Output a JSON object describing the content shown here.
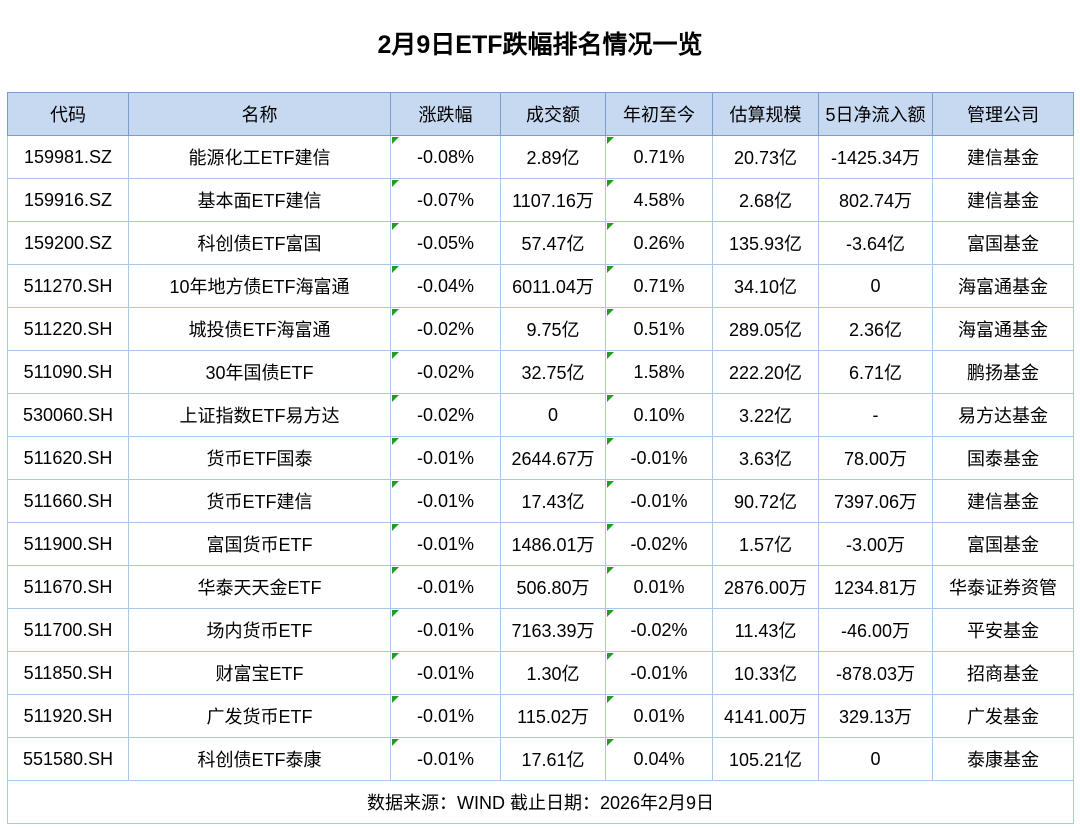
{
  "title": "2月9日ETF跌幅排名情况一览",
  "chart_data": {
    "type": "table",
    "title": "2月9日ETF跌幅排名情况一览",
    "columns": [
      "代码",
      "名称",
      "涨跌幅",
      "成交额",
      "年初至今",
      "估算规模",
      "5日净流入额",
      "管理公司"
    ],
    "rows": [
      [
        "159981.SZ",
        "能源化工ETF建信",
        "-0.08%",
        "2.89亿",
        "0.71%",
        "20.73亿",
        "-1425.34万",
        "建信基金"
      ],
      [
        "159916.SZ",
        "基本面ETF建信",
        "-0.07%",
        "1107.16万",
        "4.58%",
        "2.68亿",
        "802.74万",
        "建信基金"
      ],
      [
        "159200.SZ",
        "科创债ETF富国",
        "-0.05%",
        "57.47亿",
        "0.26%",
        "135.93亿",
        "-3.64亿",
        "富国基金"
      ],
      [
        "511270.SH",
        "10年地方债ETF海富通",
        "-0.04%",
        "6011.04万",
        "0.71%",
        "34.10亿",
        "0",
        "海富通基金"
      ],
      [
        "511220.SH",
        "城投债ETF海富通",
        "-0.02%",
        "9.75亿",
        "0.51%",
        "289.05亿",
        "2.36亿",
        "海富通基金"
      ],
      [
        "511090.SH",
        "30年国债ETF",
        "-0.02%",
        "32.75亿",
        "1.58%",
        "222.20亿",
        "6.71亿",
        "鹏扬基金"
      ],
      [
        "530060.SH",
        "上证指数ETF易方达",
        "-0.02%",
        "0",
        "0.10%",
        "3.22亿",
        "-",
        "易方达基金"
      ],
      [
        "511620.SH",
        "货币ETF国泰",
        "-0.01%",
        "2644.67万",
        "-0.01%",
        "3.63亿",
        "78.00万",
        "国泰基金"
      ],
      [
        "511660.SH",
        "货币ETF建信",
        "-0.01%",
        "17.43亿",
        "-0.01%",
        "90.72亿",
        "7397.06万",
        "建信基金"
      ],
      [
        "511900.SH",
        "富国货币ETF",
        "-0.01%",
        "1486.01万",
        "-0.02%",
        "1.57亿",
        "-3.00万",
        "富国基金"
      ],
      [
        "511670.SH",
        "华泰天天金ETF",
        "-0.01%",
        "506.80万",
        "0.01%",
        "2876.00万",
        "1234.81万",
        "华泰证券资管"
      ],
      [
        "511700.SH",
        "场内货币ETF",
        "-0.01%",
        "7163.39万",
        "-0.02%",
        "11.43亿",
        "-46.00万",
        "平安基金"
      ],
      [
        "511850.SH",
        "财富宝ETF",
        "-0.01%",
        "1.30亿",
        "-0.01%",
        "10.33亿",
        "-878.03万",
        "招商基金"
      ],
      [
        "511920.SH",
        "广发货币ETF",
        "-0.01%",
        "115.02万",
        "0.01%",
        "4141.00万",
        "329.13万",
        "广发基金"
      ],
      [
        "551580.SH",
        "科创债ETF泰康",
        "-0.01%",
        "17.61亿",
        "0.04%",
        "105.21亿",
        "0",
        "泰康基金"
      ]
    ],
    "green_triangle_columns": [
      2,
      4
    ],
    "footnote": "数据来源：WIND 截止日期：2026年2月9日",
    "layout": {
      "grid": "on",
      "header_position": "top"
    }
  },
  "colors": {
    "header_bg": "#c7d9f1",
    "header_border": "#7e9bc9",
    "body_border": "#a9c7e9",
    "indicator_green": "#269b24",
    "text": "#000000",
    "background": "#ffffff"
  }
}
